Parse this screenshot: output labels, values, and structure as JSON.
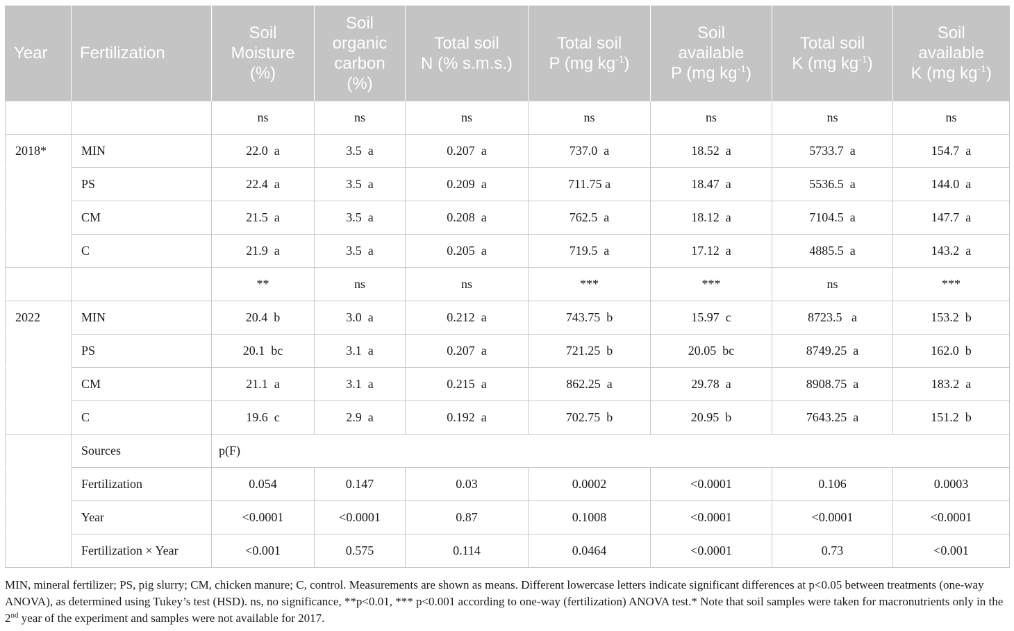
{
  "table": {
    "headers": [
      {
        "html": "Year"
      },
      {
        "html": "Fertilization"
      },
      {
        "html": "Soil<br>Moisture<br>(%)"
      },
      {
        "html": "Soil<br>organic<br>carbon<br>(%)"
      },
      {
        "html": "Total soil<br>N (% s.m.s.)"
      },
      {
        "html": "Total soil<br>P (mg kg<sup>-1</sup>)"
      },
      {
        "html": "Soil<br>available<br>P (mg kg<sup>-1</sup>)"
      },
      {
        "html": "Total soil<br>K (mg kg<sup>-1</sup>)"
      },
      {
        "html": "Soil<br>available<br>K (mg kg<sup>-1</sup>)"
      }
    ],
    "rows": [
      [
        "",
        "",
        "ns",
        "ns",
        "ns",
        "ns",
        "ns",
        "ns",
        "ns"
      ],
      [
        "2018*",
        "MIN",
        "22.0  a",
        "3.5  a",
        "0.207  a",
        "737.0  a",
        "18.52  a",
        "5733.7  a",
        "154.7  a"
      ],
      [
        "",
        "PS",
        "22.4  a",
        "3.5  a",
        "0.209  a",
        "711.75 a",
        "18.47  a",
        "5536.5  a",
        "144.0  a"
      ],
      [
        "",
        "CM",
        "21.5  a",
        "3.5  a",
        "0.208  a",
        "762.5  a",
        "18.12  a",
        "7104.5  a",
        "147.7  a"
      ],
      [
        "",
        "C",
        "21.9  a",
        "3.5  a",
        "0.205  a",
        "719.5  a",
        "17.12  a",
        "4885.5  a",
        "143.2  a"
      ],
      [
        "",
        "",
        "**",
        "ns",
        "ns",
        "***",
        "***",
        "ns",
        "***"
      ],
      [
        "2022",
        "MIN",
        "20.4  b",
        "3.0  a",
        "0.212  a",
        "743.75  b",
        "15.97  c",
        "8723.5   a",
        "153.2  b"
      ],
      [
        "",
        "PS",
        "20.1  bc",
        "3.1  a",
        "0.207  a",
        "721.25  b",
        "20.05  bc",
        "8749.25  a",
        "162.0  b"
      ],
      [
        "",
        "CM",
        "21.1  a",
        "3.1  a",
        "0.215  a",
        "862.25  a",
        "29.78  a",
        "8908.75  a",
        "183.2  a"
      ],
      [
        "",
        "C",
        "19.6  c",
        "2.9  a",
        "0.192  a",
        "702.75  b",
        "20.95  b",
        "7643.25  a",
        "151.2  b"
      ]
    ],
    "sources_label": "Sources",
    "sources_value": "p(F)",
    "stats_rows": [
      [
        "Fertilization",
        "0.054",
        "0.147",
        "0.03",
        "0.0002",
        "<0.0001",
        "0.106",
        "0.0003"
      ],
      [
        "Year",
        "<0.0001",
        "<0.0001",
        "0.87",
        "0.1008",
        "<0.0001",
        "<0.0001",
        "<0.0001"
      ],
      [
        "Fertilization × Year",
        "<0.001",
        "0.575",
        "0.114",
        "0.0464",
        "<0.0001",
        "0.73",
        "<0.001"
      ]
    ]
  },
  "footnote": {
    "line1": "MIN, mineral fertilizer; PS, pig slurry; CM, chicken manure; C, control. Measurements are shown as means. Different lowercase letters indicate significant differences at p<0.05 between treatments (one-way ANOVA), as determined using Tukey’s test (HSD). ns, no significance, **p<0.01, *** p<0.001 according to one-way (fertilization) ANOVA test.* Note that soil samples were taken for macronutrients only in the 2",
    "sup": "nd",
    "line2": " year of the experiment and samples were not available for 2017."
  }
}
